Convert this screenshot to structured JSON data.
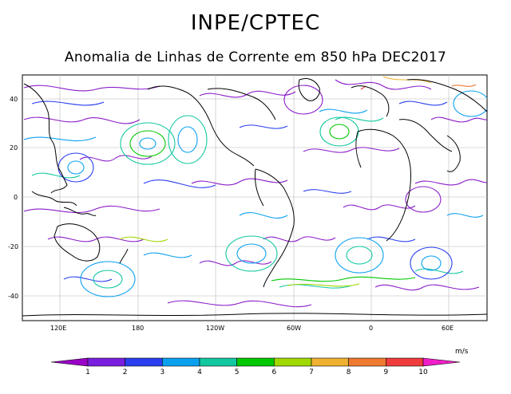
{
  "header": {
    "title": "INPE/CPTEC",
    "subtitle": "Anomalia de Linhas de Corrente em 850 hPa DEC2017"
  },
  "map": {
    "type": "streamline_anomaly_map",
    "lat_ticks": [
      "40",
      "20",
      "0",
      "-20",
      "-40"
    ],
    "lon_ticks": [
      "120E",
      "180",
      "120W",
      "60W",
      "0",
      "60E"
    ],
    "grid": true
  },
  "colorbar": {
    "unit": "m/s",
    "labels": [
      "1",
      "2",
      "3",
      "4",
      "5",
      "6",
      "7",
      "8",
      "9",
      "10"
    ],
    "colors": [
      "#9a00c8",
      "#7a1fe0",
      "#2a3ef0",
      "#0aa0f0",
      "#12c8a0",
      "#00c800",
      "#a0d800",
      "#f0b030",
      "#f07a30",
      "#f03c3c",
      "#f01ec8"
    ]
  }
}
